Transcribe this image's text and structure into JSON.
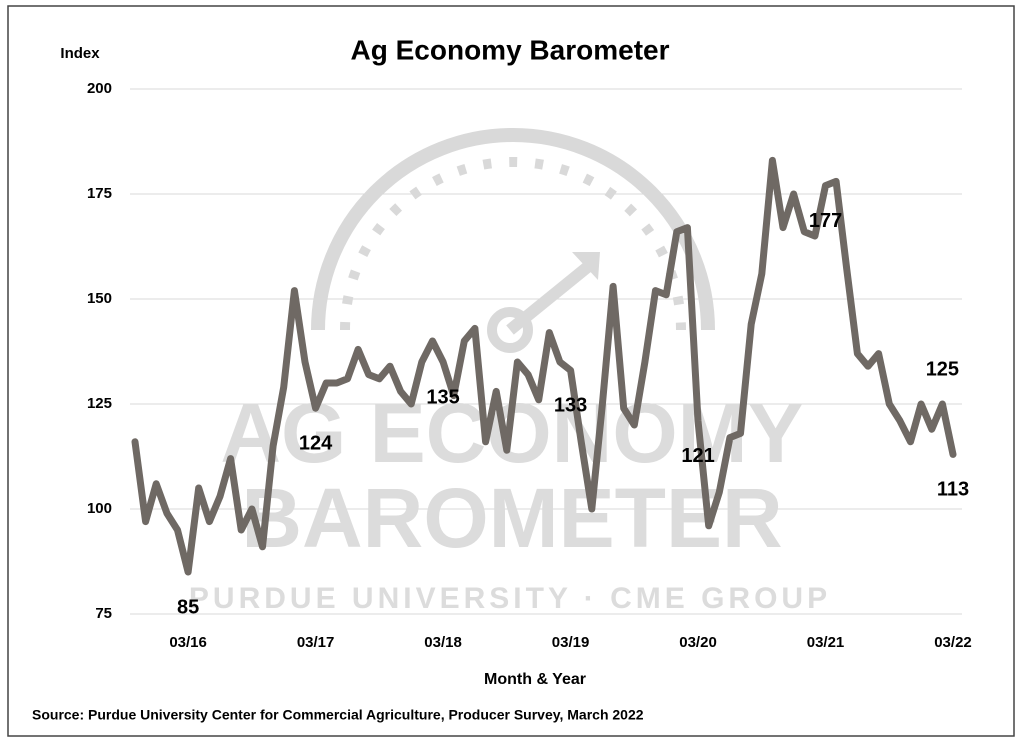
{
  "chart_data": {
    "type": "line",
    "title": "Ag Economy Barometer",
    "y_label": "Index",
    "x_label": "Month & Year",
    "source": "Source: Purdue University Center for Commercial Agriculture, Producer Survey, March 2022",
    "watermark": [
      "AG ECONOMY",
      "BAROMETER",
      "PURDUE UNIVERSITY · CME GROUP"
    ],
    "categories": [
      null,
      null,
      null,
      null,
      null,
      "03/16",
      null,
      null,
      null,
      null,
      null,
      null,
      null,
      null,
      null,
      null,
      null,
      "03/17",
      null,
      null,
      null,
      null,
      null,
      null,
      null,
      null,
      null,
      null,
      null,
      "03/18",
      null,
      null,
      null,
      null,
      null,
      null,
      null,
      null,
      null,
      null,
      null,
      "03/19",
      null,
      null,
      null,
      null,
      null,
      null,
      null,
      null,
      null,
      null,
      null,
      "03/20",
      null,
      null,
      null,
      null,
      null,
      null,
      null,
      null,
      null,
      null,
      null,
      "03/21",
      null,
      null,
      null,
      null,
      null,
      null,
      null,
      null,
      null,
      null,
      null,
      "03/22"
    ],
    "series": [
      {
        "name": "Index",
        "color": "#6f6964",
        "values": [
          116,
          97,
          106,
          99,
          95,
          85,
          105,
          97,
          103,
          112,
          95,
          100,
          91,
          115,
          129,
          152,
          135,
          124,
          130,
          130,
          131,
          138,
          132,
          131,
          134,
          128,
          125,
          135,
          140,
          135,
          127,
          140,
          143,
          116,
          128,
          114,
          135,
          132,
          126,
          142,
          135,
          133,
          116,
          100,
          125,
          153,
          124,
          120,
          135,
          152,
          151,
          166,
          167,
          121,
          96,
          104,
          117,
          118,
          144,
          156,
          183,
          167,
          175,
          166,
          165,
          177,
          178,
          157,
          137,
          134,
          137,
          125,
          121,
          116,
          125,
          119,
          125,
          113
        ],
        "value_labels": [
          null,
          null,
          null,
          null,
          null,
          "85",
          null,
          null,
          null,
          null,
          null,
          null,
          null,
          null,
          null,
          null,
          null,
          "124",
          null,
          null,
          null,
          null,
          null,
          null,
          null,
          null,
          null,
          null,
          null,
          "135",
          null,
          null,
          null,
          null,
          null,
          null,
          null,
          null,
          null,
          null,
          null,
          "133",
          null,
          null,
          null,
          null,
          null,
          null,
          null,
          null,
          null,
          null,
          null,
          "121",
          null,
          null,
          null,
          null,
          null,
          null,
          null,
          null,
          null,
          null,
          null,
          "177",
          null,
          null,
          null,
          null,
          null,
          null,
          null,
          null,
          null,
          null,
          "125",
          "113"
        ]
      }
    ],
    "ylim": [
      75,
      200
    ],
    "yticks": [
      75,
      100,
      125,
      150,
      175,
      200
    ],
    "grid": true
  }
}
